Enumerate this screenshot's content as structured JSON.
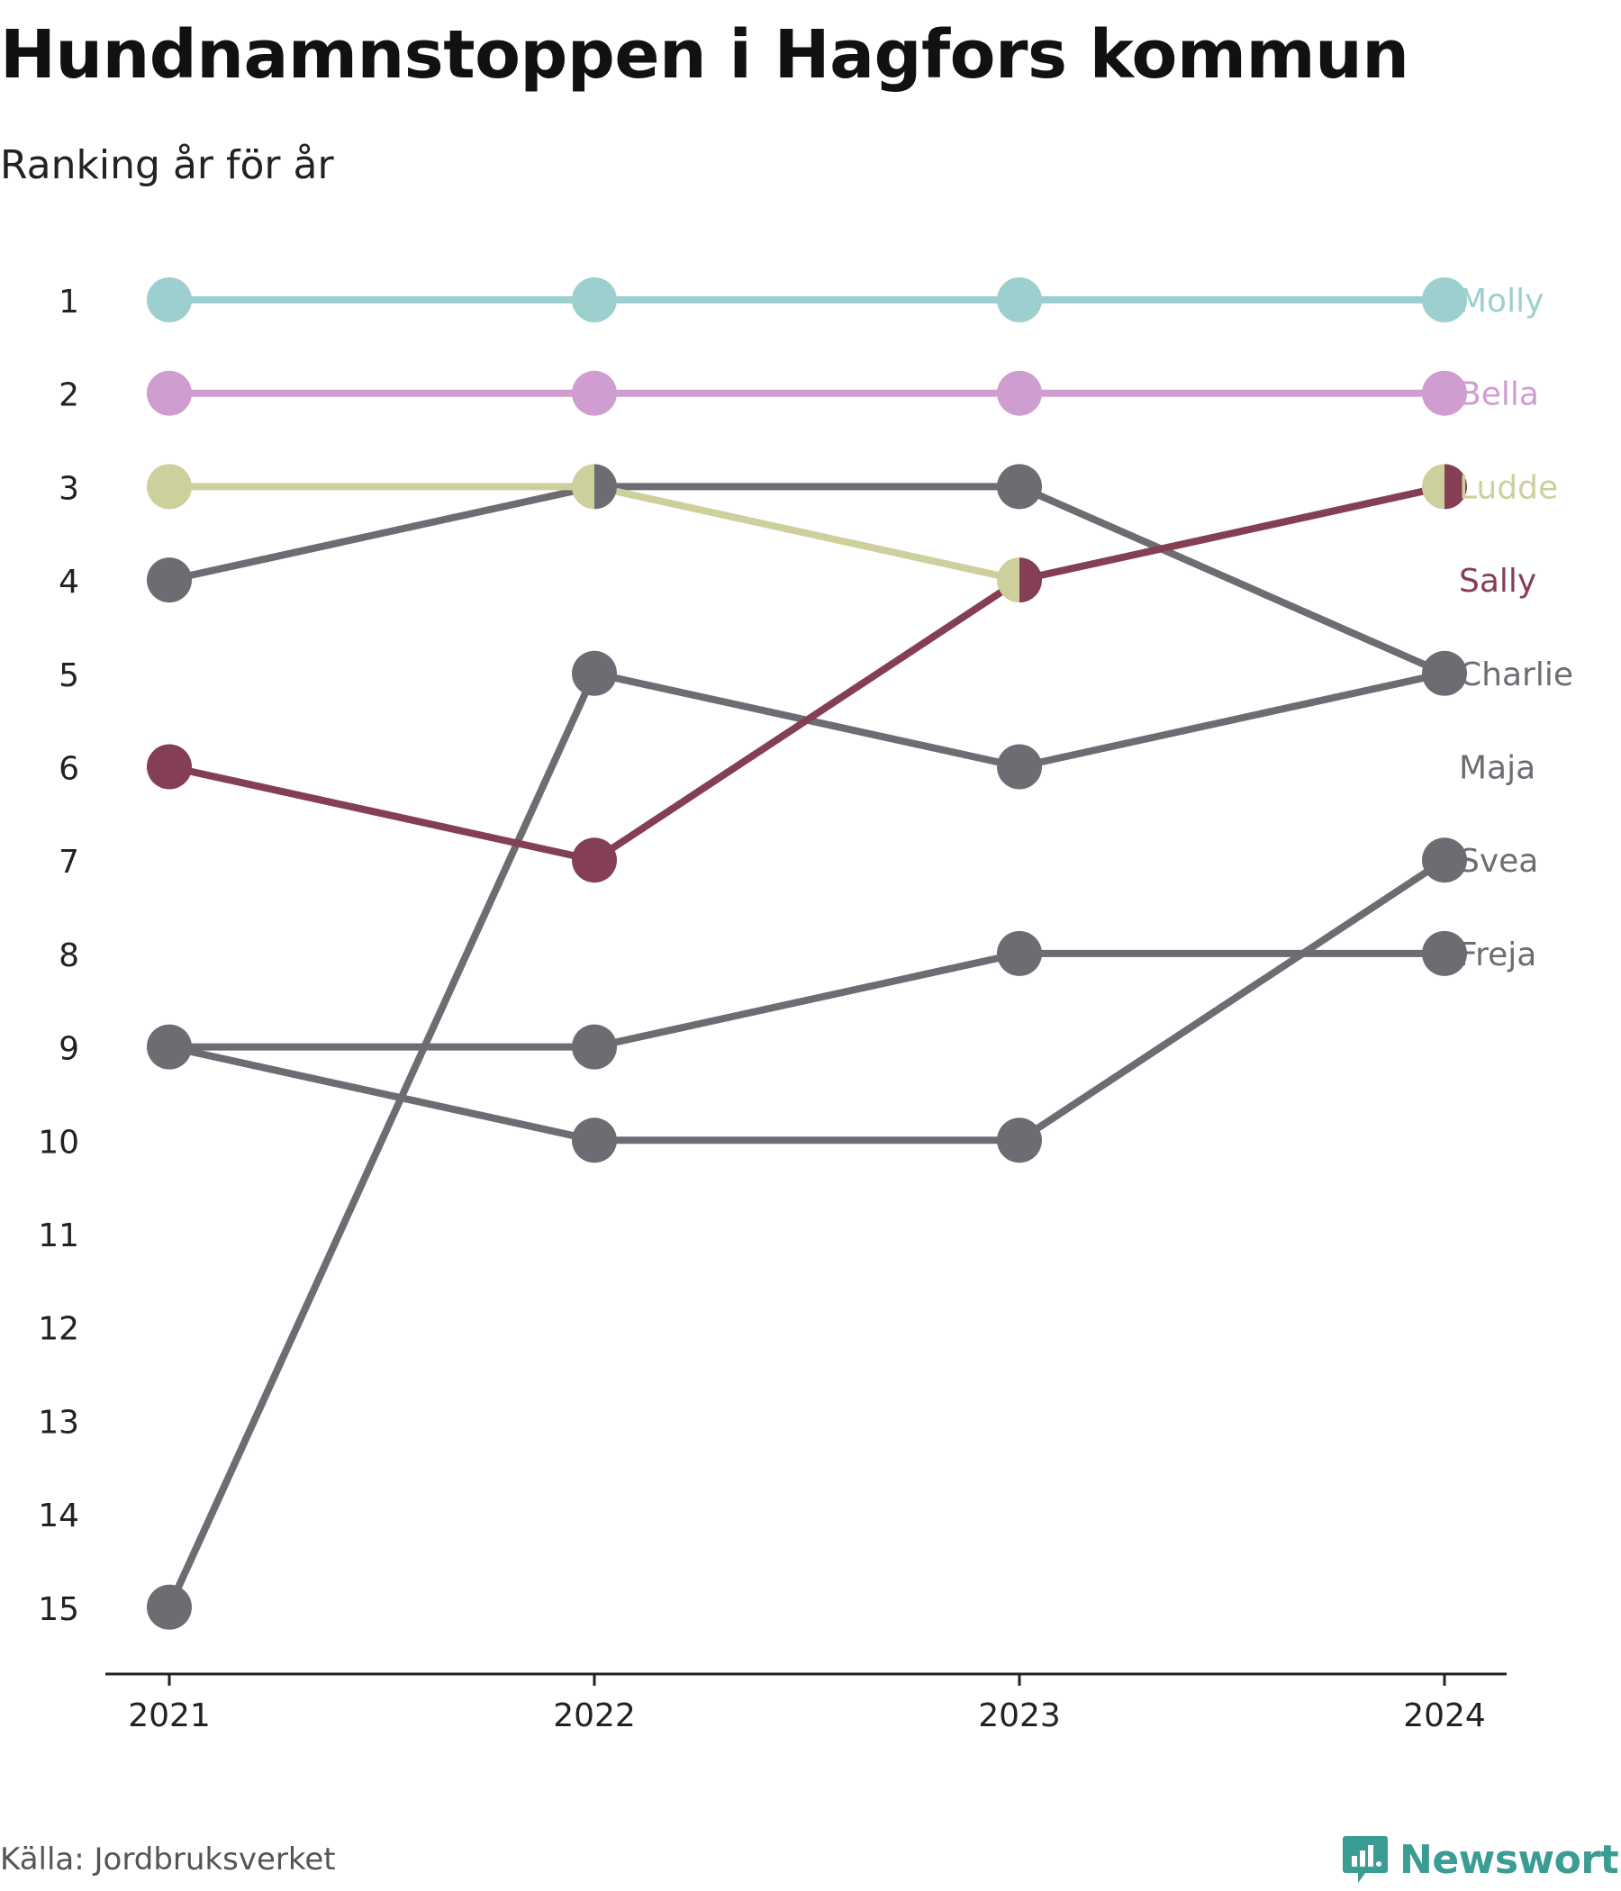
{
  "title": "Hundnamnstoppen i Hagfors kommun",
  "subtitle": "Ranking år för år",
  "source": "Källa: Jordbruksverket",
  "brand": "Newsworthy",
  "colors": {
    "teal": "#9dcfce",
    "pink": "#d09dd0",
    "olive": "#cdd09d",
    "wine": "#843f55",
    "grey": "#6d6c73",
    "axis": "#222222",
    "brand": "#3a9c92"
  },
  "chart_data": {
    "type": "line",
    "x": [
      "2021",
      "2022",
      "2023",
      "2024"
    ],
    "y_ticks": [
      "1",
      "2",
      "3",
      "4",
      "5",
      "6",
      "7",
      "8",
      "9",
      "10",
      "11",
      "12",
      "13",
      "14",
      "15"
    ],
    "ylim": [
      1,
      15
    ],
    "y_reversed": true,
    "series": [
      {
        "name": "Molly",
        "values": [
          1,
          1,
          1,
          1
        ],
        "color": "#9dcfce"
      },
      {
        "name": "Bella",
        "values": [
          2,
          2,
          2,
          2
        ],
        "color": "#d09dd0"
      },
      {
        "name": "Ludde",
        "values": [
          3,
          3,
          4,
          3
        ],
        "color": "#cdd09d"
      },
      {
        "name": "Sally",
        "values": [
          6,
          7,
          4,
          3
        ],
        "color": "#843f55"
      },
      {
        "name": "Charlie",
        "values": [
          4,
          3,
          3,
          5
        ],
        "color": "#6d6c73"
      },
      {
        "name": "Maja",
        "values": [
          15,
          5,
          6,
          5
        ],
        "color": "#6d6c73"
      },
      {
        "name": "Svea",
        "values": [
          9,
          10,
          10,
          7
        ],
        "color": "#6d6c73"
      },
      {
        "name": "Freja",
        "values": [
          9,
          9,
          8,
          8
        ],
        "color": "#6d6c73"
      }
    ],
    "label_ranks": [
      1,
      2,
      3,
      4,
      5,
      6,
      7,
      8
    ]
  }
}
